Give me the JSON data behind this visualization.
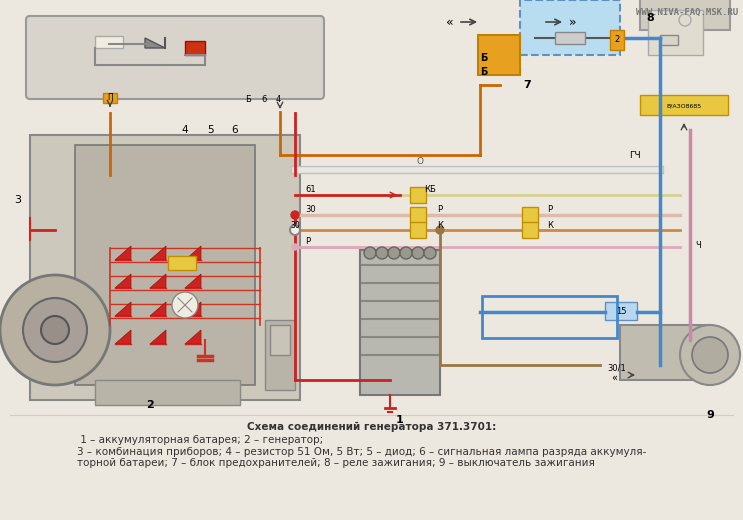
{
  "figsize": [
    7.43,
    5.2
  ],
  "dpi": 100,
  "bg_color": "#ede8df",
  "watermark": "WWW.NIVA-FAQ.MSK.RU",
  "caption_bold": "Схема соединений генератора 371.3701:",
  "caption_rest": " 1 – аккумуляторная батарея; 2 – генератор;\n3 – комбинация приборов; 4 – резистор 51 Ом, 5 Вт; 5 – диод; 6 – сигнальная лампа разряда аккумуля-\nторной батареи; 7 – блок предохранителей; 8 – реле зажигания; 9 – выключатель зажигания"
}
